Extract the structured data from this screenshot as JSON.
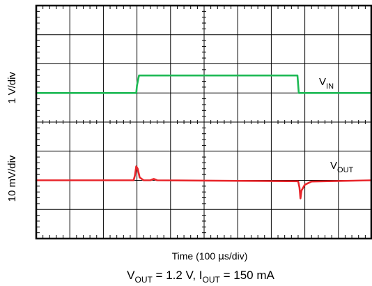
{
  "chart_data": {
    "type": "line",
    "title": "",
    "xlabel": {
      "main": "Time (100 ",
      "mu": "µ",
      "rest": "s/div)"
    },
    "ylabels": [
      "1 V/div",
      "10 mV/div"
    ],
    "caption": {
      "v": "V",
      "vsub": "OUT",
      "vval": " = 1.2 V, ",
      "i": "I",
      "isub": "OUT",
      "ival": " = 150 mA"
    },
    "xlim": [
      0,
      10
    ],
    "ylim": [
      0,
      8
    ],
    "grid": true,
    "grid_divisions": {
      "x": 10,
      "y": 8
    },
    "series": [
      {
        "name": "VIN",
        "label": {
          "main": "V",
          "sub": "IN"
        },
        "color": "#1db954",
        "points": [
          [
            0,
            5.0
          ],
          [
            2.98,
            5.0
          ],
          [
            3.0,
            5.25
          ],
          [
            3.06,
            5.6
          ],
          [
            7.78,
            5.6
          ],
          [
            7.82,
            5.0
          ],
          [
            10,
            5.0
          ]
        ]
      },
      {
        "name": "VOUT",
        "label": {
          "main": "V",
          "sub": "OUT"
        },
        "color": "#e8262b",
        "points": [
          [
            0,
            2.0
          ],
          [
            2.9,
            2.0
          ],
          [
            2.94,
            2.17
          ],
          [
            2.98,
            2.48
          ],
          [
            3.02,
            2.4
          ],
          [
            3.08,
            2.1
          ],
          [
            3.2,
            2.0
          ],
          [
            3.4,
            2.0
          ],
          [
            3.5,
            2.05
          ],
          [
            3.6,
            2.0
          ],
          [
            7.8,
            1.97
          ],
          [
            7.84,
            1.75
          ],
          [
            7.87,
            1.38
          ],
          [
            7.9,
            1.65
          ],
          [
            8.0,
            1.85
          ],
          [
            8.2,
            1.96
          ],
          [
            10,
            2.0
          ]
        ]
      }
    ]
  }
}
